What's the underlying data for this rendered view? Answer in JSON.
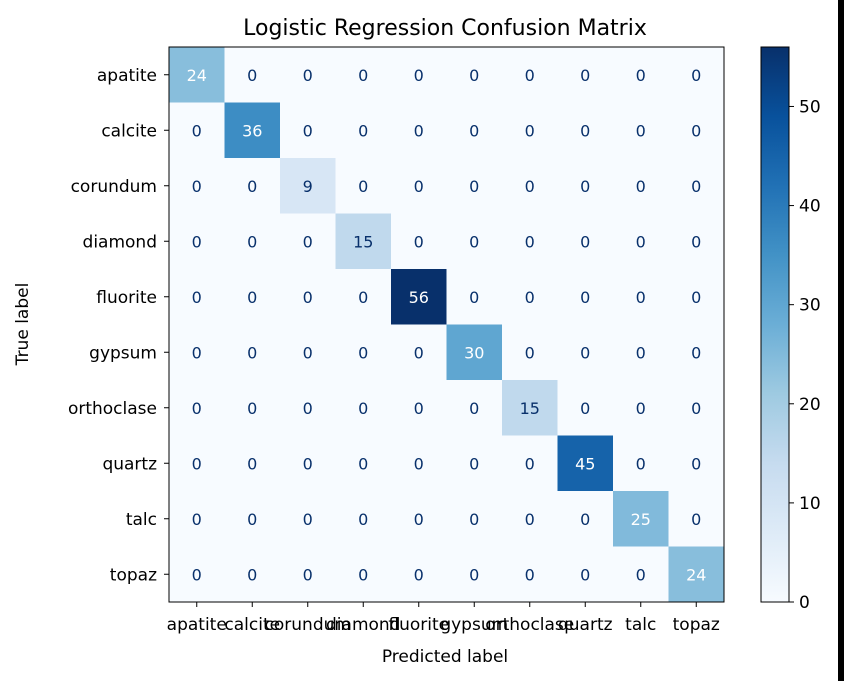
{
  "chart_data": {
    "type": "heatmap",
    "title": "Logistic Regression Confusion Matrix",
    "xlabel": "Predicted label",
    "ylabel": "True label",
    "labels": [
      "apatite",
      "calcite",
      "corundum",
      "diamond",
      "fluorite",
      "gypsum",
      "orthoclase",
      "quartz",
      "talc",
      "topaz"
    ],
    "matrix": [
      [
        24,
        0,
        0,
        0,
        0,
        0,
        0,
        0,
        0,
        0
      ],
      [
        0,
        36,
        0,
        0,
        0,
        0,
        0,
        0,
        0,
        0
      ],
      [
        0,
        0,
        9,
        0,
        0,
        0,
        0,
        0,
        0,
        0
      ],
      [
        0,
        0,
        0,
        15,
        0,
        0,
        0,
        0,
        0,
        0
      ],
      [
        0,
        0,
        0,
        0,
        56,
        0,
        0,
        0,
        0,
        0
      ],
      [
        0,
        0,
        0,
        0,
        0,
        30,
        0,
        0,
        0,
        0
      ],
      [
        0,
        0,
        0,
        0,
        0,
        0,
        15,
        0,
        0,
        0
      ],
      [
        0,
        0,
        0,
        0,
        0,
        0,
        0,
        45,
        0,
        0
      ],
      [
        0,
        0,
        0,
        0,
        0,
        0,
        0,
        0,
        25,
        0
      ],
      [
        0,
        0,
        0,
        0,
        0,
        0,
        0,
        0,
        0,
        24
      ]
    ],
    "colormap": "Blues",
    "vmin": 0,
    "vmax": 56,
    "colorbar_ticks": [
      0,
      10,
      20,
      30,
      40,
      50
    ]
  }
}
